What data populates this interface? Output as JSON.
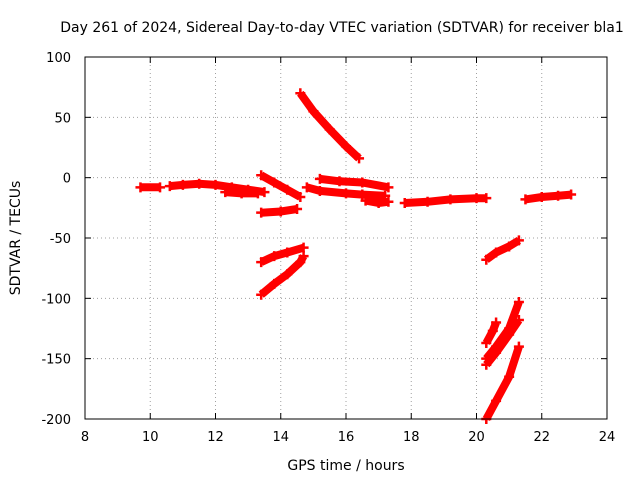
{
  "chart_data": {
    "type": "scatter",
    "title": "Day 261 of 2024, Sidereal Day-to-day VTEC variation (SDTVAR) for receiver bla1",
    "xlabel": "GPS time / hours",
    "ylabel": "SDTVAR / TECUs",
    "xlim": [
      8,
      24
    ],
    "ylim": [
      -200,
      100
    ],
    "xticks": [
      8,
      10,
      12,
      14,
      16,
      18,
      20,
      22,
      24
    ],
    "yticks": [
      100,
      50,
      0,
      -50,
      -100,
      -150,
      -200
    ],
    "xtick_labels": [
      "8",
      "10",
      "12",
      "14",
      "16",
      "18",
      "20",
      "22",
      "24"
    ],
    "ytick_labels": [
      "100",
      "50",
      "0",
      "-50",
      "-100",
      "-150",
      "-200"
    ],
    "grid": true,
    "legend": "none",
    "marker_color": "#ff0000",
    "series": [
      {
        "points": [
          [
            9.7,
            -8
          ],
          [
            10.3,
            -8
          ]
        ]
      },
      {
        "points": [
          [
            10.6,
            -7
          ],
          [
            11.0,
            -6
          ],
          [
            11.5,
            -5
          ],
          [
            12.0,
            -6
          ],
          [
            12.5,
            -8
          ],
          [
            13.0,
            -10
          ],
          [
            13.5,
            -12
          ]
        ]
      },
      {
        "points": [
          [
            12.3,
            -12
          ],
          [
            12.8,
            -13
          ],
          [
            13.3,
            -13
          ]
        ]
      },
      {
        "points": [
          [
            13.4,
            2
          ],
          [
            13.8,
            -4
          ],
          [
            14.2,
            -10
          ],
          [
            14.6,
            -16
          ]
        ]
      },
      {
        "points": [
          [
            13.4,
            -29
          ],
          [
            14.0,
            -28
          ],
          [
            14.5,
            -26
          ]
        ]
      },
      {
        "points": [
          [
            13.4,
            -70
          ],
          [
            13.8,
            -65
          ],
          [
            14.2,
            -62
          ],
          [
            14.7,
            -58
          ]
        ]
      },
      {
        "points": [
          [
            13.4,
            -97
          ],
          [
            13.8,
            -88
          ],
          [
            14.2,
            -80
          ],
          [
            14.6,
            -70
          ],
          [
            14.7,
            -65
          ]
        ]
      },
      {
        "points": [
          [
            14.6,
            70
          ],
          [
            15.0,
            55
          ],
          [
            15.5,
            40
          ],
          [
            16.0,
            26
          ],
          [
            16.4,
            16
          ]
        ]
      },
      {
        "points": [
          [
            14.8,
            -8
          ],
          [
            15.2,
            -11
          ],
          [
            16.0,
            -13
          ],
          [
            16.5,
            -14
          ],
          [
            17.2,
            -15
          ]
        ]
      },
      {
        "points": [
          [
            15.2,
            -1
          ],
          [
            15.8,
            -3
          ],
          [
            16.5,
            -4
          ],
          [
            17.3,
            -8
          ]
        ]
      },
      {
        "points": [
          [
            16.6,
            -19
          ],
          [
            17.0,
            -21
          ],
          [
            17.3,
            -20
          ]
        ]
      },
      {
        "points": [
          [
            17.8,
            -21
          ],
          [
            18.5,
            -20
          ],
          [
            19.2,
            -18
          ],
          [
            20.0,
            -17
          ],
          [
            20.3,
            -17
          ]
        ]
      },
      {
        "points": [
          [
            20.3,
            -68
          ],
          [
            20.6,
            -62
          ],
          [
            21.0,
            -57
          ],
          [
            21.3,
            -52
          ]
        ]
      },
      {
        "points": [
          [
            20.3,
            -137
          ],
          [
            20.5,
            -127
          ],
          [
            20.6,
            -120
          ]
        ]
      },
      {
        "points": [
          [
            20.3,
            -150
          ],
          [
            20.6,
            -140
          ],
          [
            21.0,
            -125
          ],
          [
            21.3,
            -103
          ]
        ]
      },
      {
        "points": [
          [
            20.3,
            -155
          ],
          [
            20.6,
            -145
          ],
          [
            21.0,
            -130
          ],
          [
            21.3,
            -118
          ]
        ]
      },
      {
        "points": [
          [
            20.3,
            -200
          ],
          [
            20.6,
            -185
          ],
          [
            21.0,
            -165
          ],
          [
            21.3,
            -140
          ]
        ]
      },
      {
        "points": [
          [
            21.5,
            -18
          ],
          [
            22.0,
            -16
          ],
          [
            22.5,
            -15
          ],
          [
            22.9,
            -14
          ]
        ]
      }
    ]
  }
}
